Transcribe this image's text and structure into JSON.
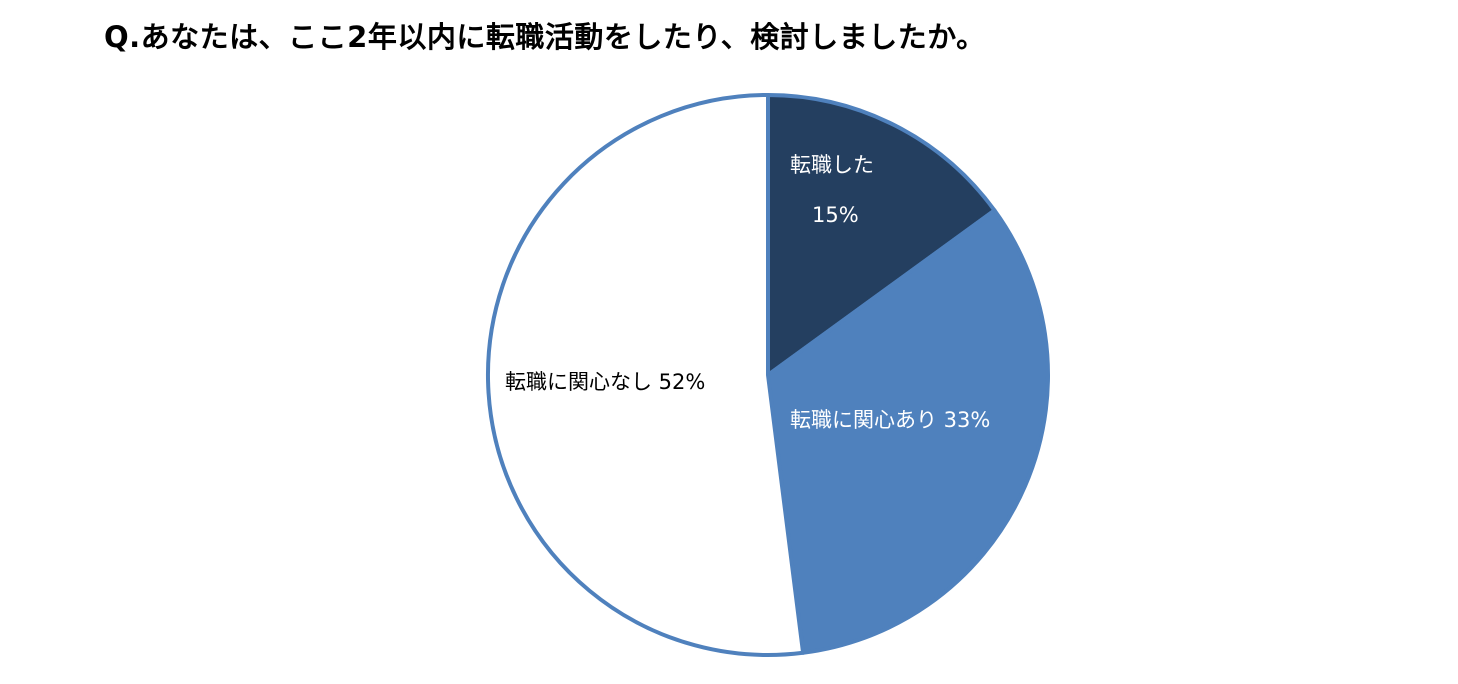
{
  "chart_data": {
    "type": "pie",
    "title": "Q.あなたは、ここ2年以内に転職活動をしたり、検討しましたか。",
    "categories": [
      "転職した",
      "転職に関心あり",
      "転職に関心なし"
    ],
    "values": [
      15,
      33,
      52
    ],
    "colors": [
      "#243f60",
      "#4f81bd",
      "#ffffff"
    ],
    "border_color": "#4f81bd",
    "label_colors": [
      "#ffffff",
      "#ffffff",
      "#000000"
    ],
    "labels": [
      {
        "name": "転職した",
        "value": "15%"
      },
      {
        "name": "転職に関心あり",
        "value": "33%"
      },
      {
        "name": "転職に関心なし",
        "value": "52%"
      }
    ],
    "start_angle_deg": 0,
    "direction": "clockwise",
    "legend": "none"
  }
}
